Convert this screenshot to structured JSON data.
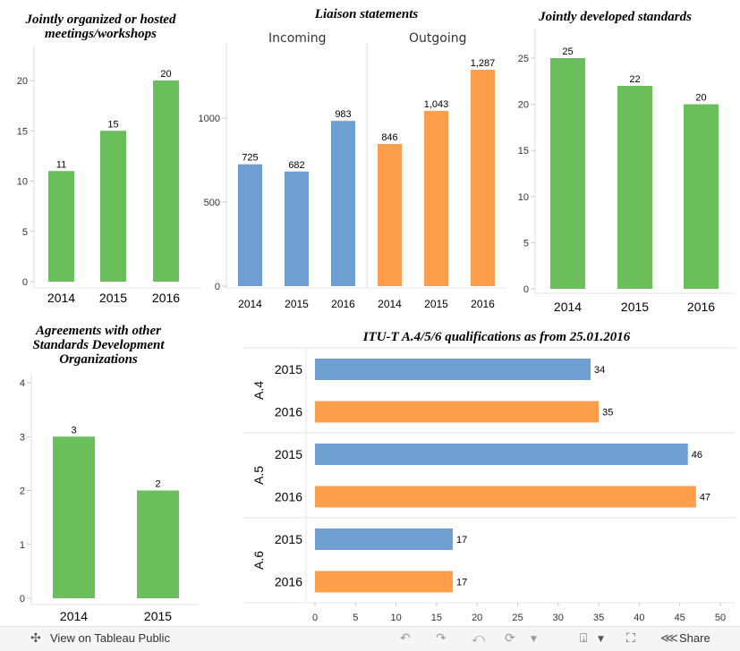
{
  "chart_data": [
    {
      "id": "c1",
      "type": "bar",
      "title": "Jointly organized or hosted meetings/workshops",
      "categories": [
        "2014",
        "2015",
        "2016"
      ],
      "values": [
        11,
        15,
        20
      ],
      "labels": [
        "11",
        "15",
        "20"
      ],
      "yticks": [
        0,
        5,
        10,
        15,
        20
      ],
      "ylim": [
        0,
        24
      ],
      "color": "#6abe5b"
    },
    {
      "id": "c2",
      "type": "bar",
      "title": "Liaison statements",
      "panels": [
        "Incoming",
        "Outgoing"
      ],
      "categories": [
        "2014",
        "2015",
        "2016",
        "2014",
        "2015",
        "2016"
      ],
      "values": [
        725,
        682,
        983,
        846,
        1043,
        1287
      ],
      "labels": [
        "725",
        "682",
        "983",
        "846",
        "1,043",
        "1,287"
      ],
      "colors": [
        "#6f9fd0",
        "#6f9fd0",
        "#6f9fd0",
        "#fd9f4a",
        "#fd9f4a",
        "#fd9f4a"
      ],
      "yticks": [
        0,
        500,
        1000
      ],
      "ytick_labels": [
        "0",
        "500",
        "1000"
      ],
      "ylim": [
        0,
        1450
      ]
    },
    {
      "id": "c3",
      "type": "bar",
      "title": "Jointly developed standards",
      "categories": [
        "2014",
        "2015",
        "2016"
      ],
      "values": [
        25,
        22,
        20
      ],
      "labels": [
        "25",
        "22",
        "20"
      ],
      "yticks": [
        0,
        5,
        10,
        15,
        20,
        25
      ],
      "ylim": [
        0,
        28
      ],
      "color": "#6abe5b"
    },
    {
      "id": "c4",
      "type": "bar",
      "title": "Agreements with other Standards Development Organizations",
      "categories": [
        "2014",
        "2015"
      ],
      "values": [
        3,
        2
      ],
      "labels": [
        "3",
        "2"
      ],
      "yticks": [
        0,
        1,
        2,
        3,
        4
      ],
      "ylim": [
        0,
        4
      ],
      "color": "#6abe5b"
    },
    {
      "id": "c5",
      "type": "bar",
      "orientation": "horizontal",
      "title": "ITU-T A.4/5/6 qualifications as from 25.01.2016",
      "groups": [
        {
          "name": "A.4",
          "rows": [
            {
              "year": "2015",
              "value": 34
            },
            {
              "year": "2016",
              "value": 35
            }
          ]
        },
        {
          "name": "A.5",
          "rows": [
            {
              "year": "2015",
              "value": 46
            },
            {
              "year": "2016",
              "value": 47
            }
          ]
        },
        {
          "name": "A.6",
          "rows": [
            {
              "year": "2015",
              "value": 17
            },
            {
              "year": "2016",
              "value": 17
            }
          ]
        }
      ],
      "xticks": [
        0,
        5,
        10,
        15,
        20,
        25,
        30,
        35,
        40,
        45,
        50
      ],
      "xlim": [
        0,
        50
      ],
      "colors": {
        "2015": "#6f9fd0",
        "2016": "#fd9f4a"
      }
    }
  ],
  "toolbar": {
    "view_label": "View on Tableau Public",
    "share_label": "Share"
  }
}
